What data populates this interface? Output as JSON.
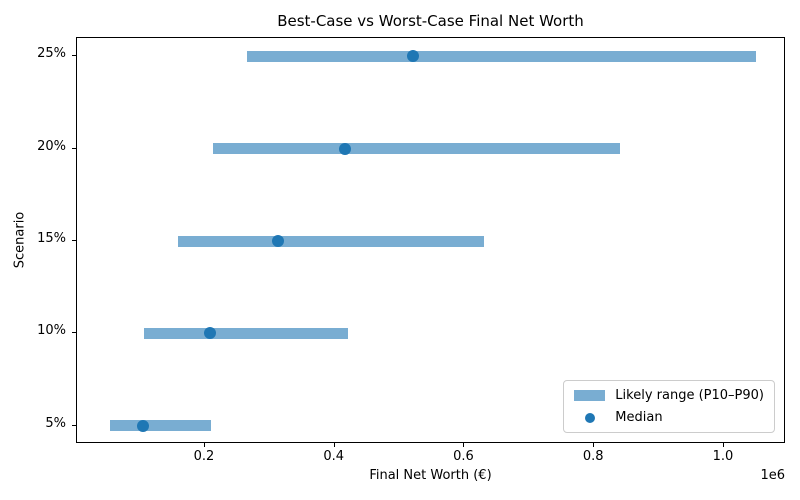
{
  "chart_data": {
    "type": "bar",
    "orientation": "horizontal",
    "title": "Best-Case vs Worst-Case Final Net Worth",
    "xlabel": "Final Net Worth (€)",
    "ylabel": "Scenario",
    "x_offset_label": "1e6",
    "categories": [
      "5%",
      "10%",
      "15%",
      "20%",
      "25%"
    ],
    "series": [
      {
        "name": "Likely range (P10–P90)",
        "type": "range",
        "p10": [
          53000,
          106000,
          159000,
          212000,
          265000
        ],
        "p90": [
          210000,
          420000,
          630000,
          840000,
          1050000
        ]
      },
      {
        "name": "Median",
        "type": "scatter",
        "values": [
          104000,
          208000,
          312000,
          416000,
          520000
        ]
      }
    ],
    "x_ticks": {
      "values": [
        200000,
        400000,
        600000,
        800000,
        1000000
      ],
      "labels": [
        "0.2",
        "0.4",
        "0.6",
        "0.8",
        "1.0"
      ]
    },
    "xlim": [
      2700,
      1095600
    ],
    "ylim": [
      -0.2,
      4.2
    ],
    "grid": false,
    "legend_position": "lower right",
    "colors": {
      "range_bar": "#79ADD2",
      "median_dot": "#1F77B4",
      "text": "#000000",
      "spine": "#000000",
      "legend_border": "#CCCCCC"
    }
  }
}
